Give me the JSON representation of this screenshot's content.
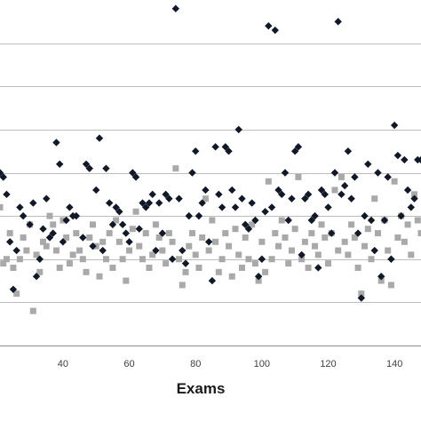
{
  "chart_data": {
    "type": "scatter",
    "xlabel": "Exams",
    "xlim": [
      21,
      148
    ],
    "ylim": [
      0,
      8
    ],
    "x_ticks": [
      40,
      60,
      80,
      100,
      120,
      140
    ],
    "y_gridlines": [
      1,
      2,
      3,
      4,
      5,
      6,
      7
    ],
    "grid": true,
    "colors": {
      "series_a": "#111827",
      "series_b": "#a9a9a9",
      "grid": "#bdbdbd"
    },
    "series": [
      {
        "marker": "diamond",
        "color": "#111827",
        "points": [
          [
            21,
            4.0
          ],
          [
            22,
            3.9
          ],
          [
            23,
            3.5
          ],
          [
            24,
            2.4
          ],
          [
            25,
            1.3
          ],
          [
            26,
            2.2
          ],
          [
            27,
            3.2
          ],
          [
            28,
            3.0
          ],
          [
            30,
            2.8
          ],
          [
            31,
            3.3
          ],
          [
            32,
            1.6
          ],
          [
            33,
            2.0
          ],
          [
            34,
            2.7
          ],
          [
            35,
            3.4
          ],
          [
            36,
            2.5
          ],
          [
            37,
            2.6
          ],
          [
            38,
            4.7
          ],
          [
            39,
            4.2
          ],
          [
            40,
            2.4
          ],
          [
            41,
            2.9
          ],
          [
            42,
            3.2
          ],
          [
            43,
            3.0
          ],
          [
            44,
            3.0
          ],
          [
            46,
            2.5
          ],
          [
            47,
            4.2
          ],
          [
            48,
            4.1
          ],
          [
            49,
            2.3
          ],
          [
            50,
            3.6
          ],
          [
            51,
            4.8
          ],
          [
            52,
            2.2
          ],
          [
            53,
            4.1
          ],
          [
            54,
            3.3
          ],
          [
            55,
            2.8
          ],
          [
            56,
            3.2
          ],
          [
            57,
            3.1
          ],
          [
            58,
            2.8
          ],
          [
            59,
            2.6
          ],
          [
            60,
            2.4
          ],
          [
            61,
            4.0
          ],
          [
            62,
            3.9
          ],
          [
            63,
            2.7
          ],
          [
            64,
            3.3
          ],
          [
            65,
            3.2
          ],
          [
            66,
            3.3
          ],
          [
            67,
            3.5
          ],
          [
            68,
            2.2
          ],
          [
            69,
            3.3
          ],
          [
            70,
            2.6
          ],
          [
            71,
            3.5
          ],
          [
            72,
            3.4
          ],
          [
            73,
            2.0
          ],
          [
            74,
            7.8
          ],
          [
            75,
            3.4
          ],
          [
            76,
            2.2
          ],
          [
            77,
            1.9
          ],
          [
            78,
            3.0
          ],
          [
            79,
            4.0
          ],
          [
            80,
            4.5
          ],
          [
            81,
            3.0
          ],
          [
            82,
            3.3
          ],
          [
            83,
            3.6
          ],
          [
            84,
            2.4
          ],
          [
            85,
            1.5
          ],
          [
            86,
            4.6
          ],
          [
            87,
            3.5
          ],
          [
            88,
            3.2
          ],
          [
            89,
            4.6
          ],
          [
            90,
            4.5
          ],
          [
            91,
            3.6
          ],
          [
            92,
            3.2
          ],
          [
            93,
            5.0
          ],
          [
            94,
            3.4
          ],
          [
            95,
            2.8
          ],
          [
            96,
            2.7
          ],
          [
            97,
            3.3
          ],
          [
            98,
            2.9
          ],
          [
            99,
            1.6
          ],
          [
            100,
            2.0
          ],
          [
            101,
            3.1
          ],
          [
            102,
            7.4
          ],
          [
            103,
            3.2
          ],
          [
            104,
            7.3
          ],
          [
            105,
            3.6
          ],
          [
            106,
            3.5
          ],
          [
            107,
            4.0
          ],
          [
            108,
            2.9
          ],
          [
            109,
            3.4
          ],
          [
            110,
            4.5
          ],
          [
            111,
            4.6
          ],
          [
            112,
            2.1
          ],
          [
            113,
            3.4
          ],
          [
            114,
            3.5
          ],
          [
            115,
            2.9
          ],
          [
            116,
            3.0
          ],
          [
            117,
            1.8
          ],
          [
            118,
            3.6
          ],
          [
            119,
            3.5
          ],
          [
            120,
            3.2
          ],
          [
            121,
            2.6
          ],
          [
            122,
            4.0
          ],
          [
            123,
            7.5
          ],
          [
            124,
            3.5
          ],
          [
            125,
            3.7
          ],
          [
            126,
            4.5
          ],
          [
            127,
            3.4
          ],
          [
            128,
            3.9
          ],
          [
            129,
            2.6
          ],
          [
            130,
            1.1
          ],
          [
            131,
            3.0
          ],
          [
            132,
            4.2
          ],
          [
            133,
            2.9
          ],
          [
            134,
            2.2
          ],
          [
            135,
            4.0
          ],
          [
            136,
            1.6
          ],
          [
            137,
            2.9
          ],
          [
            138,
            3.9
          ],
          [
            139,
            2.0
          ],
          [
            140,
            5.1
          ],
          [
            141,
            4.4
          ],
          [
            142,
            3.0
          ],
          [
            143,
            4.3
          ],
          [
            144,
            3.6
          ],
          [
            145,
            3.2
          ],
          [
            146,
            3.4
          ],
          [
            147,
            4.3
          ],
          [
            148,
            4.3
          ]
        ]
      },
      {
        "marker": "square",
        "color": "#a9a9a9",
        "points": [
          [
            21,
            3.2
          ],
          [
            22,
            1.9
          ],
          [
            23,
            2.0
          ],
          [
            24,
            2.6
          ],
          [
            25,
            1.8
          ],
          [
            26,
            1.2
          ],
          [
            27,
            2.0
          ],
          [
            28,
            2.5
          ],
          [
            29,
            2.2
          ],
          [
            30,
            2.8
          ],
          [
            31,
            0.8
          ],
          [
            32,
            2.1
          ],
          [
            33,
            1.7
          ],
          [
            34,
            2.4
          ],
          [
            35,
            2.3
          ],
          [
            36,
            3.0
          ],
          [
            37,
            2.8
          ],
          [
            38,
            2.2
          ],
          [
            39,
            1.8
          ],
          [
            40,
            2.9
          ],
          [
            41,
            2.5
          ],
          [
            42,
            1.9
          ],
          [
            43,
            2.1
          ],
          [
            44,
            2.6
          ],
          [
            45,
            2.2
          ],
          [
            46,
            2.0
          ],
          [
            47,
            1.7
          ],
          [
            48,
            2.5
          ],
          [
            49,
            2.8
          ],
          [
            50,
            2.3
          ],
          [
            51,
            1.6
          ],
          [
            52,
            2.4
          ],
          [
            53,
            2.0
          ],
          [
            54,
            2.6
          ],
          [
            55,
            1.8
          ],
          [
            56,
            2.9
          ],
          [
            57,
            2.4
          ],
          [
            58,
            2.0
          ],
          [
            59,
            1.5
          ],
          [
            60,
            2.2
          ],
          [
            61,
            2.7
          ],
          [
            62,
            3.1
          ],
          [
            63,
            2.3
          ],
          [
            64,
            2.0
          ],
          [
            65,
            2.6
          ],
          [
            66,
            1.8
          ],
          [
            67,
            2.1
          ],
          [
            68,
            2.8
          ],
          [
            69,
            2.5
          ],
          [
            70,
            2.2
          ],
          [
            71,
            1.9
          ],
          [
            72,
            2.6
          ],
          [
            73,
            2.4
          ],
          [
            74,
            4.1
          ],
          [
            75,
            2.0
          ],
          [
            76,
            1.4
          ],
          [
            77,
            1.7
          ],
          [
            78,
            2.3
          ],
          [
            79,
            2.6
          ],
          [
            80,
            2.1
          ],
          [
            81,
            1.8
          ],
          [
            82,
            2.5
          ],
          [
            83,
            3.4
          ],
          [
            84,
            2.2
          ],
          [
            85,
            2.9
          ],
          [
            86,
            2.4
          ],
          [
            87,
            1.7
          ],
          [
            88,
            2.0
          ],
          [
            89,
            2.6
          ],
          [
            90,
            2.3
          ],
          [
            91,
            1.6
          ],
          [
            92,
            2.7
          ],
          [
            93,
            2.1
          ],
          [
            94,
            1.8
          ],
          [
            95,
            2.5
          ],
          [
            96,
            2.0
          ],
          [
            97,
            2.8
          ],
          [
            98,
            1.9
          ],
          [
            99,
            1.5
          ],
          [
            100,
            2.4
          ],
          [
            101,
            1.7
          ],
          [
            102,
            3.8
          ],
          [
            103,
            2.0
          ],
          [
            104,
            2.6
          ],
          [
            105,
            2.3
          ],
          [
            106,
            2.9
          ],
          [
            107,
            2.5
          ],
          [
            108,
            1.9
          ],
          [
            109,
            2.2
          ],
          [
            110,
            2.7
          ],
          [
            111,
            3.9
          ],
          [
            112,
            2.0
          ],
          [
            113,
            2.4
          ],
          [
            114,
            1.8
          ],
          [
            115,
            2.6
          ],
          [
            116,
            2.3
          ],
          [
            117,
            2.1
          ],
          [
            118,
            2.8
          ],
          [
            119,
            2.5
          ],
          [
            120,
            1.9
          ],
          [
            121,
            2.6
          ],
          [
            122,
            3.6
          ],
          [
            123,
            2.2
          ],
          [
            124,
            3.9
          ],
          [
            125,
            2.4
          ],
          [
            126,
            2.1
          ],
          [
            127,
            2.8
          ],
          [
            128,
            2.5
          ],
          [
            129,
            1.8
          ],
          [
            130,
            1.2
          ],
          [
            131,
            2.3
          ],
          [
            132,
            2.7
          ],
          [
            133,
            2.0
          ],
          [
            134,
            3.4
          ],
          [
            135,
            2.6
          ],
          [
            136,
            1.5
          ],
          [
            137,
            2.9
          ],
          [
            138,
            2.2
          ],
          [
            139,
            1.4
          ],
          [
            140,
            3.8
          ],
          [
            141,
            2.5
          ],
          [
            142,
            3.0
          ],
          [
            143,
            2.4
          ],
          [
            144,
            2.8
          ],
          [
            145,
            2.1
          ],
          [
            146,
            3.5
          ],
          [
            147,
            2.9
          ],
          [
            148,
            2.6
          ]
        ]
      }
    ]
  }
}
